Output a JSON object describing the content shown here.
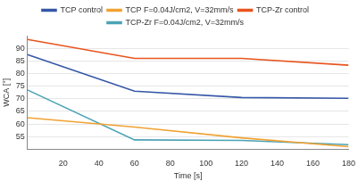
{
  "chart_data": {
    "type": "line",
    "x_label": "Time [s]",
    "y_label": "WCA [°]",
    "x": [
      0,
      60,
      120,
      180
    ],
    "series": [
      {
        "name": "TCP control",
        "color": "#3557a6",
        "values": [
          87.5,
          73,
          70.5,
          70.2
        ]
      },
      {
        "name": "TCP F=0.04J/cm2, V=32mm/s",
        "color": "#f0a232",
        "values": [
          62.5,
          58.8,
          54.5,
          51
        ]
      },
      {
        "name": "TCP-Zr control",
        "color": "#e8541e",
        "values": [
          93.5,
          86,
          86,
          83.3
        ]
      },
      {
        "name": "TCP-Zr F=0.04J/cm2, V=32mm/s",
        "color": "#4ba3b5",
        "values": [
          73.5,
          53.7,
          53.5,
          51.8
        ]
      }
    ],
    "xlim": [
      0,
      180
    ],
    "xticks": [
      20,
      40,
      60,
      80,
      100,
      120,
      140,
      160,
      180
    ],
    "ylim": [
      50,
      95
    ],
    "yticks": [
      55,
      60,
      65,
      70,
      75,
      80,
      85,
      90
    ],
    "grid": true,
    "legend": "top"
  }
}
